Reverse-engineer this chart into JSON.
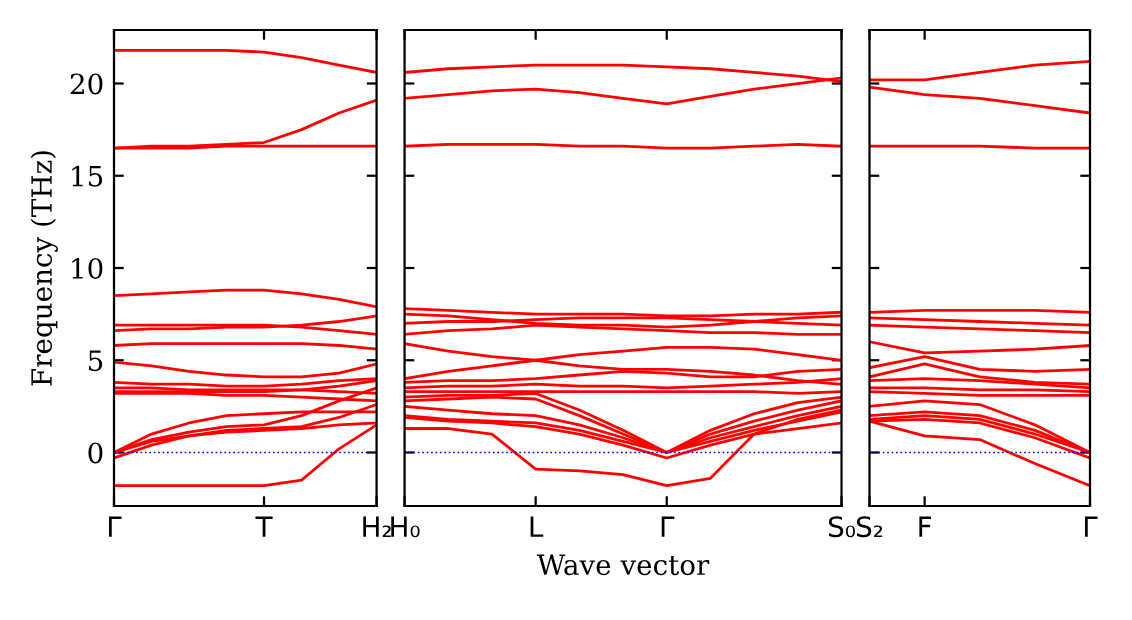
{
  "chart_data": [
    {
      "type": "line",
      "ylabel": "Frequency (THz)",
      "ylim": [
        -2.9,
        22.9
      ],
      "yticks": [
        0,
        5,
        10,
        15,
        20
      ],
      "categories": [
        "Γ",
        null,
        null,
        null,
        "T",
        null,
        null,
        "H₂"
      ],
      "grid": false,
      "marker": "none",
      "line_style": "solid",
      "ref_lines": [
        {
          "axis": "y",
          "value": 0,
          "color": "#0000ff",
          "line_style": "dotted"
        }
      ],
      "series": [
        {
          "color": "#ff0000",
          "values": [
            21.8,
            21.8,
            21.8,
            21.8,
            21.7,
            21.4,
            21.0,
            20.6
          ]
        },
        {
          "color": "#ff0000",
          "values": [
            16.5,
            16.6,
            16.6,
            16.7,
            16.8,
            17.5,
            18.4,
            19.1
          ]
        },
        {
          "color": "#ff0000",
          "values": [
            16.5,
            16.5,
            16.5,
            16.6,
            16.6,
            16.6,
            16.6,
            16.6
          ]
        },
        {
          "color": "#ff0000",
          "values": [
            8.5,
            8.6,
            8.7,
            8.8,
            8.8,
            8.6,
            8.3,
            7.9
          ]
        },
        {
          "color": "#ff0000",
          "values": [
            6.9,
            6.9,
            6.9,
            6.9,
            6.9,
            6.8,
            6.6,
            6.4
          ]
        },
        {
          "color": "#ff0000",
          "values": [
            6.6,
            6.7,
            6.7,
            6.8,
            6.8,
            6.9,
            7.1,
            7.4
          ]
        },
        {
          "color": "#ff0000",
          "values": [
            5.8,
            5.9,
            5.9,
            5.9,
            5.9,
            5.9,
            5.8,
            5.6
          ]
        },
        {
          "color": "#ff0000",
          "values": [
            4.9,
            4.7,
            4.4,
            4.2,
            4.1,
            4.1,
            4.3,
            4.8
          ]
        },
        {
          "color": "#ff0000",
          "values": [
            3.8,
            3.7,
            3.7,
            3.6,
            3.6,
            3.7,
            3.9,
            4.0
          ]
        },
        {
          "color": "#ff0000",
          "values": [
            3.5,
            3.5,
            3.4,
            3.4,
            3.4,
            3.4,
            3.3,
            3.2
          ]
        },
        {
          "color": "#ff0000",
          "values": [
            3.3,
            3.3,
            3.3,
            3.3,
            3.3,
            3.4,
            3.6,
            3.9
          ]
        },
        {
          "color": "#ff0000",
          "values": [
            3.2,
            3.2,
            3.2,
            3.1,
            3.1,
            3.0,
            2.9,
            2.8
          ]
        },
        {
          "color": "#ff0000",
          "values": [
            0,
            1.0,
            1.6,
            2.0,
            2.1,
            2.2,
            2.2,
            2.2
          ]
        },
        {
          "color": "#ff0000",
          "values": [
            0,
            0.7,
            1.1,
            1.4,
            1.5,
            2.0,
            2.8,
            3.5
          ]
        },
        {
          "color": "#ff0000",
          "values": [
            0,
            0.6,
            0.9,
            1.2,
            1.3,
            1.4,
            1.9,
            2.6
          ]
        },
        {
          "color": "#ff0000",
          "values": [
            -0.3,
            0.4,
            0.9,
            1.1,
            1.2,
            1.3,
            1.5,
            1.6
          ]
        },
        {
          "color": "#ff0000",
          "values": [
            -1.8,
            -1.8,
            -1.8,
            -1.8,
            -1.8,
            -1.5,
            0.2,
            1.5
          ]
        }
      ]
    },
    {
      "type": "line",
      "xlabel": "Wave vector",
      "ylim": [
        -2.9,
        22.9
      ],
      "yticks": [
        0,
        5,
        10,
        15,
        20
      ],
      "tick_labels": "x",
      "categories": [
        "H₀",
        null,
        null,
        "L",
        null,
        null,
        "Γ",
        null,
        null,
        null,
        "S₀"
      ],
      "grid": false,
      "marker": "none",
      "line_style": "solid",
      "ref_lines": [
        {
          "axis": "y",
          "value": 0,
          "color": "#0000ff",
          "line_style": "dotted"
        }
      ],
      "series": [
        {
          "color": "#ff0000",
          "values": [
            20.6,
            20.8,
            20.9,
            21.0,
            21.0,
            21.0,
            20.9,
            20.8,
            20.6,
            20.4,
            20.1
          ]
        },
        {
          "color": "#ff0000",
          "values": [
            19.2,
            19.4,
            19.6,
            19.7,
            19.5,
            19.2,
            18.9,
            19.3,
            19.7,
            20.0,
            20.3
          ]
        },
        {
          "color": "#ff0000",
          "values": [
            16.6,
            16.7,
            16.7,
            16.7,
            16.6,
            16.6,
            16.5,
            16.5,
            16.6,
            16.7,
            16.6
          ]
        },
        {
          "color": "#ff0000",
          "values": [
            7.8,
            7.7,
            7.6,
            7.5,
            7.5,
            7.5,
            7.4,
            7.4,
            7.5,
            7.5,
            7.6
          ]
        },
        {
          "color": "#ff0000",
          "values": [
            7.5,
            7.4,
            7.2,
            7.0,
            6.9,
            6.9,
            6.8,
            6.9,
            7.1,
            7.3,
            7.4
          ]
        },
        {
          "color": "#ff0000",
          "values": [
            7.0,
            7.1,
            7.1,
            7.2,
            7.3,
            7.3,
            7.3,
            7.2,
            7.1,
            7.0,
            6.9
          ]
        },
        {
          "color": "#ff0000",
          "values": [
            6.4,
            6.6,
            6.7,
            6.9,
            6.8,
            6.7,
            6.6,
            6.5,
            6.5,
            6.4,
            6.4
          ]
        },
        {
          "color": "#ff0000",
          "values": [
            5.9,
            5.5,
            5.2,
            5.0,
            5.3,
            5.5,
            5.7,
            5.7,
            5.6,
            5.3,
            5.0
          ]
        },
        {
          "color": "#ff0000",
          "values": [
            4.0,
            4.4,
            4.7,
            5.0,
            4.7,
            4.5,
            4.5,
            4.4,
            4.2,
            3.9,
            3.7
          ]
        },
        {
          "color": "#ff0000",
          "values": [
            3.8,
            3.9,
            3.9,
            4.0,
            4.2,
            4.4,
            4.3,
            4.1,
            4.1,
            4.4,
            4.5
          ]
        },
        {
          "color": "#ff0000",
          "values": [
            3.5,
            3.6,
            3.6,
            3.7,
            3.6,
            3.6,
            3.5,
            3.6,
            3.7,
            3.8,
            4.0
          ]
        },
        {
          "color": "#ff0000",
          "values": [
            3.3,
            3.3,
            3.3,
            3.3,
            3.3,
            3.3,
            3.3,
            3.3,
            3.3,
            3.2,
            3.3
          ]
        },
        {
          "color": "#ff0000",
          "values": [
            3.0,
            3.1,
            3.1,
            3.2,
            2.3,
            1.2,
            0,
            1.2,
            2.1,
            2.7,
            3.0
          ]
        },
        {
          "color": "#ff0000",
          "values": [
            2.8,
            2.9,
            3.0,
            2.9,
            2.0,
            1.0,
            0,
            1.0,
            1.7,
            2.3,
            2.8
          ]
        },
        {
          "color": "#ff0000",
          "values": [
            2.5,
            2.3,
            2.1,
            2.0,
            1.5,
            0.8,
            0,
            0.8,
            1.4,
            2.0,
            2.5
          ]
        },
        {
          "color": "#ff0000",
          "values": [
            2.0,
            1.8,
            1.7,
            1.6,
            1.2,
            0.6,
            0,
            0.6,
            1.2,
            1.7,
            2.2
          ]
        },
        {
          "color": "#ff0000",
          "values": [
            1.9,
            1.7,
            1.6,
            1.4,
            1.0,
            0.4,
            -0.3,
            0.4,
            1.0,
            1.3,
            1.6
          ]
        },
        {
          "color": "#ff0000",
          "values": [
            1.3,
            1.3,
            1.0,
            -0.9,
            -1.0,
            -1.2,
            -1.8,
            -1.4,
            1.0,
            1.8,
            2.3
          ]
        }
      ]
    },
    {
      "type": "line",
      "ylim": [
        -2.9,
        22.9
      ],
      "yticks": [
        0,
        5,
        10,
        15,
        20
      ],
      "tick_labels": "x",
      "categories": [
        "S₂",
        "F",
        null,
        null,
        "Γ"
      ],
      "grid": false,
      "marker": "none",
      "line_style": "solid",
      "ref_lines": [
        {
          "axis": "y",
          "value": 0,
          "color": "#0000ff",
          "line_style": "dotted"
        }
      ],
      "series": [
        {
          "color": "#ff0000",
          "values": [
            20.2,
            20.2,
            20.6,
            21.0,
            21.2
          ]
        },
        {
          "color": "#ff0000",
          "values": [
            19.8,
            19.4,
            19.2,
            18.8,
            18.4
          ]
        },
        {
          "color": "#ff0000",
          "values": [
            16.6,
            16.6,
            16.6,
            16.5,
            16.5
          ]
        },
        {
          "color": "#ff0000",
          "values": [
            7.6,
            7.7,
            7.7,
            7.7,
            7.6
          ]
        },
        {
          "color": "#ff0000",
          "values": [
            7.3,
            7.2,
            7.1,
            7.0,
            6.9
          ]
        },
        {
          "color": "#ff0000",
          "values": [
            6.9,
            6.8,
            6.7,
            6.6,
            6.5
          ]
        },
        {
          "color": "#ff0000",
          "values": [
            6.0,
            5.4,
            5.5,
            5.6,
            5.8
          ]
        },
        {
          "color": "#ff0000",
          "values": [
            4.6,
            5.2,
            4.5,
            4.4,
            4.5
          ]
        },
        {
          "color": "#ff0000",
          "values": [
            4.1,
            4.8,
            4.1,
            3.8,
            3.7
          ]
        },
        {
          "color": "#ff0000",
          "values": [
            3.9,
            4.0,
            3.9,
            3.7,
            3.5
          ]
        },
        {
          "color": "#ff0000",
          "values": [
            3.5,
            3.5,
            3.4,
            3.4,
            3.3
          ]
        },
        {
          "color": "#ff0000",
          "values": [
            3.3,
            3.2,
            3.1,
            3.1,
            3.1
          ]
        },
        {
          "color": "#ff0000",
          "values": [
            2.5,
            2.8,
            2.6,
            1.5,
            0
          ]
        },
        {
          "color": "#ff0000",
          "values": [
            2.0,
            2.2,
            2.0,
            1.2,
            0
          ]
        },
        {
          "color": "#ff0000",
          "values": [
            1.8,
            2.0,
            1.8,
            1.0,
            0
          ]
        },
        {
          "color": "#ff0000",
          "values": [
            1.7,
            1.8,
            1.6,
            0.8,
            -0.3
          ]
        },
        {
          "color": "#ff0000",
          "values": [
            1.7,
            0.9,
            0.7,
            -0.6,
            -1.8
          ]
        }
      ]
    }
  ]
}
